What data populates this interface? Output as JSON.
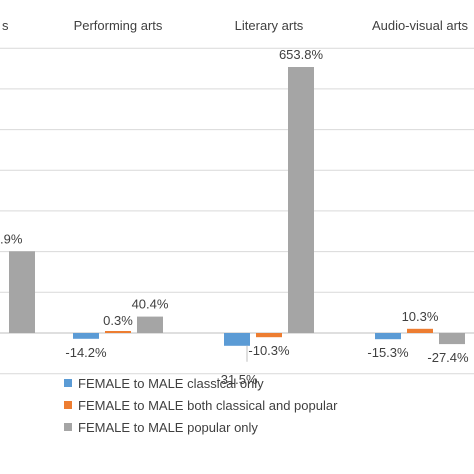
{
  "chart_data": {
    "type": "bar",
    "categories": [
      "Visual arts",
      "Performing arts",
      "Literary arts",
      "Audio-visual arts"
    ],
    "category_labels_visible": [
      "s",
      "Performing arts",
      "Literary arts",
      "Audio-visual arts"
    ],
    "series": [
      {
        "name": "FEMALE to MALE classical only",
        "color": "#5b9bd5",
        "values": [
          null,
          -14.2,
          -31.5,
          -15.3
        ]
      },
      {
        "name": "FEMALE to MALE both classical and popular",
        "color": "#ed7d31",
        "values": [
          null,
          0.3,
          -10.3,
          10.3
        ]
      },
      {
        "name": "FEMALE to MALE popular only",
        "color": "#a5a5a5",
        "values": [
          200.9,
          40.4,
          653.8,
          -27.4
        ]
      }
    ],
    "data_labels": [
      [
        "",
        "-14.2%",
        "-31.5%",
        "-15.3%"
      ],
      [
        "",
        "0.3%",
        "-10.3%",
        "10.3%"
      ],
      [
        ".9%",
        "40.4%",
        "653.8%",
        "-27.4%"
      ]
    ],
    "ylim": [
      -100,
      700
    ],
    "gridlines": true,
    "legend_position": "bottom",
    "title": "",
    "xlabel": "",
    "ylabel": ""
  }
}
